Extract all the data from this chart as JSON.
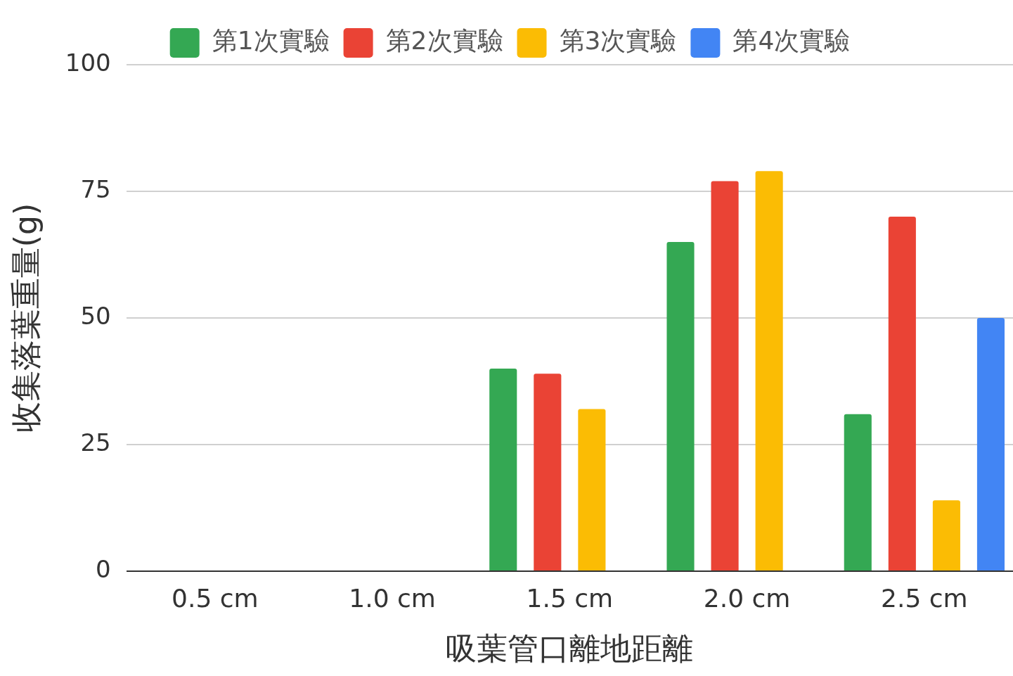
{
  "chart_data": {
    "type": "bar",
    "xlabel": "吸葉管口離地距離",
    "ylabel": "收集落葉重量(g)",
    "categories": [
      "0.5 cm",
      "1.0 cm",
      "1.5 cm",
      "2.0 cm",
      "2.5 cm"
    ],
    "series": [
      {
        "name": "第1次實驗",
        "color": "#34a853",
        "values": [
          null,
          null,
          40,
          65,
          31
        ]
      },
      {
        "name": "第2次實驗",
        "color": "#ea4335",
        "values": [
          null,
          null,
          39,
          77,
          70
        ]
      },
      {
        "name": "第3次實驗",
        "color": "#fbbc04",
        "values": [
          null,
          null,
          32,
          79,
          14
        ]
      },
      {
        "name": "第4次實驗",
        "color": "#4285f4",
        "values": [
          null,
          null,
          null,
          null,
          50
        ]
      }
    ],
    "ylim": [
      0,
      100
    ],
    "yticks": [
      0,
      25,
      50,
      75,
      100
    ],
    "grid": "y",
    "legend": "top"
  }
}
